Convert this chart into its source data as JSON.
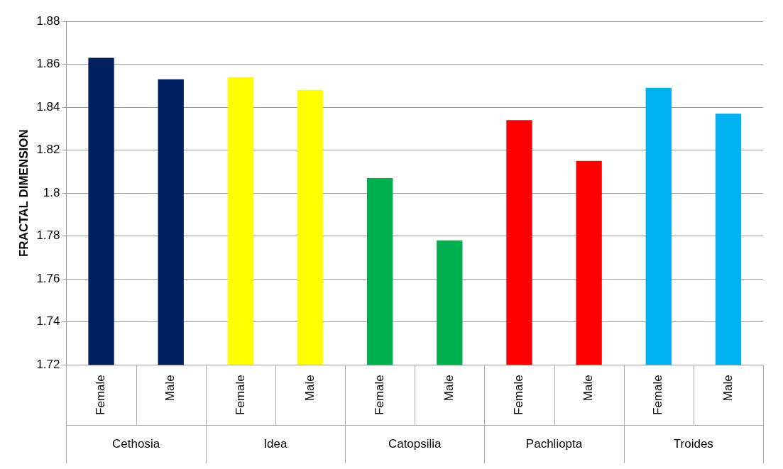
{
  "chart_data": {
    "type": "bar",
    "ylabel": "FRACTAL DIMENSION",
    "categories": [
      "Female",
      "Male",
      "Female",
      "Male",
      "Female",
      "Male",
      "Female",
      "Male",
      "Female",
      "Male"
    ],
    "values": [
      1.863,
      1.853,
      1.854,
      1.848,
      1.807,
      1.778,
      1.834,
      1.815,
      1.849,
      1.837
    ],
    "colors": [
      "#002060",
      "#002060",
      "#ffff00",
      "#ffff00",
      "#00b050",
      "#00b050",
      "#ff0000",
      "#ff0000",
      "#00b0f0",
      "#00b0f0"
    ],
    "ylim": [
      1.72,
      1.88
    ],
    "yticks": [
      1.72,
      1.74,
      1.76,
      1.78,
      1.8,
      1.82,
      1.84,
      1.86,
      1.88
    ],
    "grid": "y",
    "legend": false,
    "annotations": [
      "Cethosia",
      "Idea",
      "Catopsilia",
      "Pachliopta",
      "Troides"
    ]
  }
}
